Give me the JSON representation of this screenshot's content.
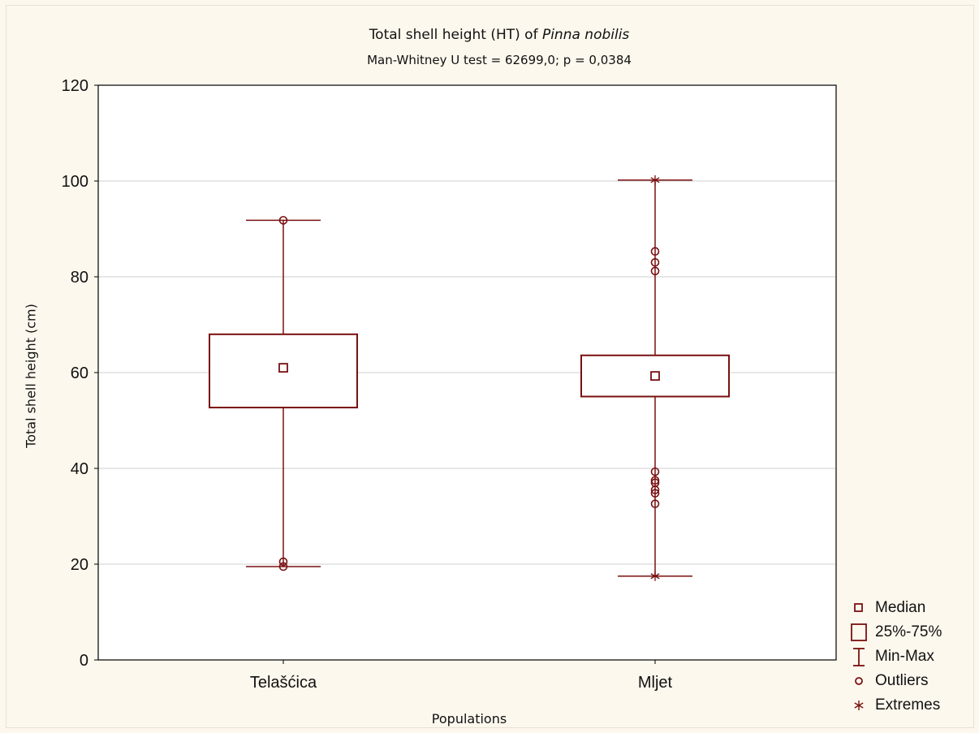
{
  "chart_data": {
    "type": "box",
    "title_prefix": "Total shell height (HT) of ",
    "title_species": "Pinna nobilis",
    "subtitle": "Man-Whitney U test = 62699,0; p = 0,0384",
    "xlabel": "Populations",
    "ylabel": "Total shell height (cm)",
    "ylim": [
      0,
      120
    ],
    "yticks": [
      0,
      20,
      40,
      60,
      80,
      100,
      120
    ],
    "grid": true,
    "categories": [
      "Telašćica",
      "Mljet"
    ],
    "boxes": [
      {
        "name": "Telašćica",
        "median": 61.0,
        "q1": 52.7,
        "q3": 68.0,
        "min": 19.5,
        "max": 91.8,
        "outliers": [
          91.8,
          20.5,
          19.5
        ],
        "extremes": []
      },
      {
        "name": "Mljet",
        "median": 59.3,
        "q1": 55.0,
        "q3": 63.6,
        "min": 17.5,
        "max": 100.2,
        "outliers": [
          85.3,
          83.0,
          81.2,
          39.3,
          37.5,
          37.0,
          35.5,
          34.8,
          32.6
        ],
        "extremes": [
          100.2,
          17.5
        ]
      }
    ],
    "legend": [
      "Median",
      "25%-75%",
      "Min-Max",
      "Outliers",
      "Extremes"
    ],
    "legend_position": "bottom-right",
    "color": "#7a1010",
    "grid_color": "#cfcfcf"
  }
}
